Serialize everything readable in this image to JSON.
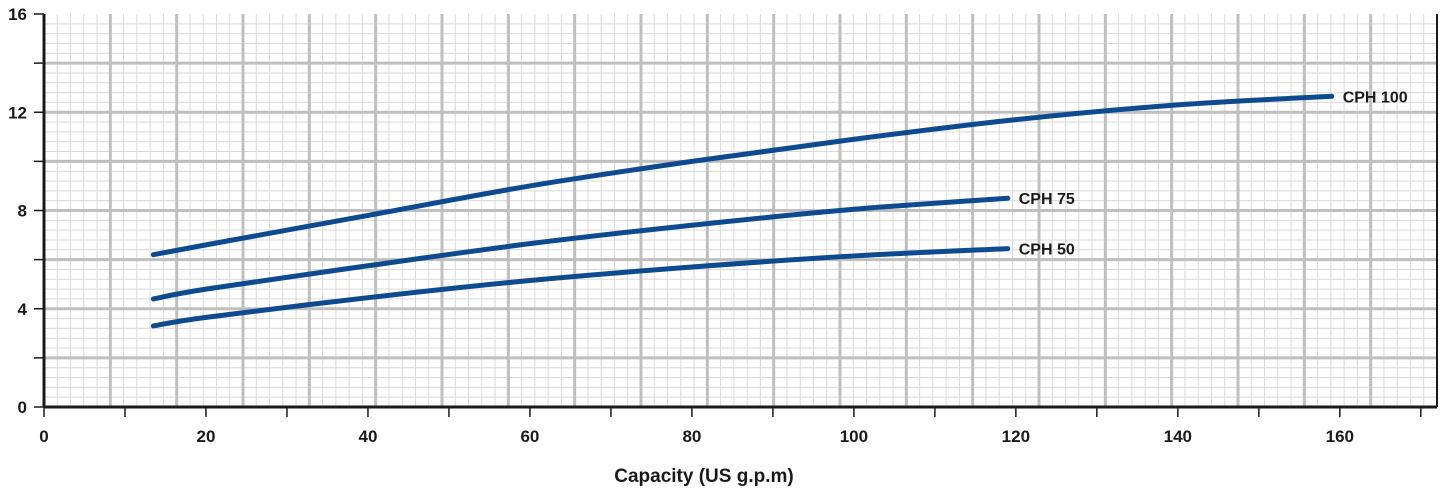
{
  "chart_data": {
    "type": "line",
    "title": "",
    "xlabel": "Capacity (US g.p.m)",
    "ylabel": "",
    "xlim": [
      0,
      172
    ],
    "ylim": [
      0,
      16
    ],
    "x_ticks": [
      0,
      20,
      40,
      60,
      80,
      100,
      120,
      140,
      160
    ],
    "y_ticks": [
      0,
      4,
      8,
      12,
      16
    ],
    "grid": true,
    "colors": {
      "line": "#0d4a8f",
      "grid_major": "#bfbfbf",
      "grid_minor": "#d9d9d9",
      "axis": "#1a1a1a"
    },
    "series": [
      {
        "name": "CPH 100",
        "x": [
          13.5,
          20,
          40,
          60,
          80,
          100,
          120,
          140,
          159
        ],
        "y": [
          6.2,
          6.6,
          7.8,
          9.0,
          10.0,
          10.9,
          11.7,
          12.3,
          12.65
        ]
      },
      {
        "name": "CPH 75",
        "x": [
          13.5,
          20,
          40,
          60,
          80,
          100,
          119
        ],
        "y": [
          4.4,
          4.8,
          5.75,
          6.65,
          7.4,
          8.05,
          8.5
        ]
      },
      {
        "name": "CPH 50",
        "x": [
          13.5,
          20,
          40,
          60,
          80,
          100,
          119
        ],
        "y": [
          3.3,
          3.65,
          4.45,
          5.15,
          5.7,
          6.15,
          6.45
        ]
      }
    ]
  }
}
